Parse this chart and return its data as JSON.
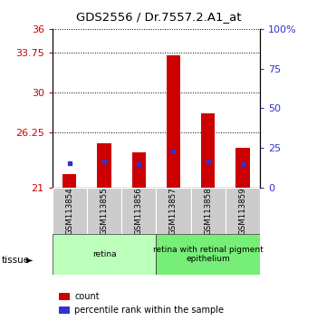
{
  "title": "GDS2556 / Dr.7557.2.A1_at",
  "categories": [
    "GSM113854",
    "GSM113855",
    "GSM113856",
    "GSM113857",
    "GSM113858",
    "GSM113859"
  ],
  "bar_heights": [
    22.3,
    25.2,
    24.35,
    33.5,
    28.0,
    24.8
  ],
  "blue_dot_values": [
    23.3,
    23.5,
    23.25,
    24.4,
    23.5,
    23.25
  ],
  "y_min": 21,
  "y_max": 36,
  "y_ticks_left": [
    21,
    26.25,
    30,
    33.75,
    36
  ],
  "y_ticks_right_pct": [
    0,
    25,
    50,
    75,
    100
  ],
  "bar_color": "#cc0000",
  "dot_color": "#3333cc",
  "tissue_groups": [
    {
      "label": "retina",
      "span": [
        0,
        3
      ],
      "color": "#bbffbb"
    },
    {
      "label": "retina with retinal pigment\nepithelium",
      "span": [
        3,
        6
      ],
      "color": "#77ee77"
    }
  ],
  "legend_items": [
    {
      "label": "count",
      "color": "#cc0000"
    },
    {
      "label": "percentile rank within the sample",
      "color": "#3333cc"
    }
  ]
}
